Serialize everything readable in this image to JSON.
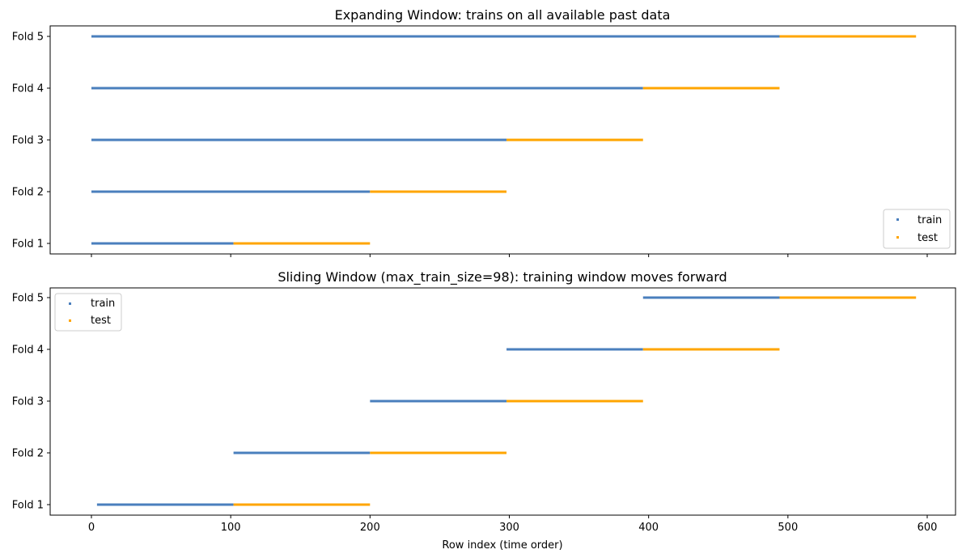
{
  "chart_data": [
    {
      "type": "timeline",
      "title": "Expanding Window: trains on all available past data",
      "xlabel": "",
      "xlim": [
        -30,
        620
      ],
      "xticks": [
        0,
        100,
        200,
        300,
        400,
        500,
        600
      ],
      "show_xtick_labels": false,
      "categories": [
        "Fold 1",
        "Fold 2",
        "Fold 3",
        "Fold 4",
        "Fold 5"
      ],
      "folds": [
        {
          "fold": "Fold 1",
          "train": [
            0,
            101
          ],
          "test": [
            102,
            199
          ]
        },
        {
          "fold": "Fold 2",
          "train": [
            0,
            199
          ],
          "test": [
            200,
            297
          ]
        },
        {
          "fold": "Fold 3",
          "train": [
            0,
            297
          ],
          "test": [
            298,
            395
          ]
        },
        {
          "fold": "Fold 4",
          "train": [
            0,
            395
          ],
          "test": [
            396,
            493
          ]
        },
        {
          "fold": "Fold 5",
          "train": [
            0,
            493
          ],
          "test": [
            494,
            591
          ]
        }
      ],
      "legend": {
        "position": "lower-right",
        "entries": [
          "train",
          "test"
        ]
      },
      "colors": {
        "train": "#4a7fbd",
        "test": "#ffa500"
      },
      "grid": false
    },
    {
      "type": "timeline",
      "title": "Sliding Window (max_train_size=98): training window moves forward",
      "xlabel": "Row index (time order)",
      "xlim": [
        -30,
        620
      ],
      "xticks": [
        0,
        100,
        200,
        300,
        400,
        500,
        600
      ],
      "show_xtick_labels": true,
      "categories": [
        "Fold 1",
        "Fold 2",
        "Fold 3",
        "Fold 4",
        "Fold 5"
      ],
      "folds": [
        {
          "fold": "Fold 1",
          "train": [
            4,
            101
          ],
          "test": [
            102,
            199
          ]
        },
        {
          "fold": "Fold 2",
          "train": [
            102,
            199
          ],
          "test": [
            200,
            297
          ]
        },
        {
          "fold": "Fold 3",
          "train": [
            200,
            297
          ],
          "test": [
            298,
            395
          ]
        },
        {
          "fold": "Fold 4",
          "train": [
            298,
            395
          ],
          "test": [
            396,
            493
          ]
        },
        {
          "fold": "Fold 5",
          "train": [
            396,
            493
          ],
          "test": [
            494,
            591
          ]
        }
      ],
      "legend": {
        "position": "upper-left",
        "entries": [
          "train",
          "test"
        ]
      },
      "colors": {
        "train": "#4a7fbd",
        "test": "#ffa500"
      },
      "grid": false
    }
  ]
}
